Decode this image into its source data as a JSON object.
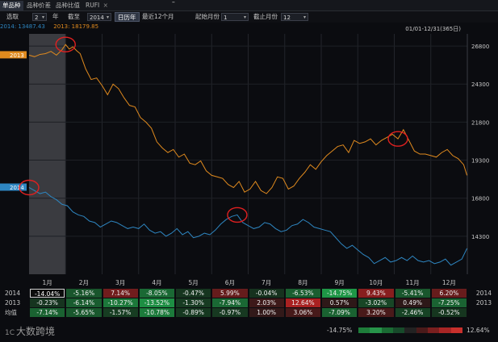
{
  "tabs": [
    {
      "label": "单品种",
      "active": true
    },
    {
      "label": "品种价差",
      "active": false
    },
    {
      "label": "品种比值",
      "active": false
    },
    {
      "label": "RUFI",
      "active": false,
      "closable": true
    }
  ],
  "toolbar": {
    "select_label": "选取",
    "years_value": "2",
    "years_unit": "年",
    "to_label": "截至",
    "year_value": "2014",
    "calendar_button": "日历年",
    "recent_button": "最近12个月",
    "start_month_label": "起始月份",
    "start_month_value": "1",
    "end_month_label": "截止月份",
    "end_month_value": "12",
    "minimize_icon": "minimize-icon"
  },
  "legend": {
    "s2014": "2014: 13487.43",
    "s2013": "2013: 18179.85",
    "color_2014": "#2e86c1",
    "color_2013": "#e08a1e"
  },
  "range_info": "01/01-12/31(365日)",
  "chart_data": {
    "type": "line",
    "ylim": [
      11800,
      27600
    ],
    "yticks": [
      "26800",
      "24300",
      "21800",
      "19300",
      "16800",
      "14300"
    ],
    "ytick_values": [
      26800,
      24300,
      21800,
      19300,
      16800,
      14300
    ],
    "x_months": [
      "1月",
      "2月",
      "3月",
      "4月",
      "5月",
      "6月",
      "7月",
      "8月",
      "9月",
      "10月",
      "11月",
      "12月"
    ],
    "series_tags": [
      "2013",
      "2014"
    ],
    "series": [
      {
        "name": "2013",
        "color": "#e08a1e",
        "x": [
          0,
          0.15,
          0.3,
          0.45,
          0.6,
          0.75,
          0.9,
          1.0,
          1.1,
          1.2,
          1.3,
          1.4,
          1.55,
          1.7,
          1.85,
          2.0,
          2.15,
          2.3,
          2.45,
          2.6,
          2.75,
          2.9,
          3.05,
          3.2,
          3.35,
          3.5,
          3.65,
          3.8,
          3.95,
          4.1,
          4.25,
          4.4,
          4.55,
          4.7,
          4.85,
          5.0,
          5.15,
          5.3,
          5.45,
          5.6,
          5.75,
          5.9,
          6.05,
          6.2,
          6.35,
          6.5,
          6.65,
          6.8,
          6.95,
          7.1,
          7.25,
          7.4,
          7.55,
          7.7,
          7.85,
          8.0,
          8.15,
          8.3,
          8.45,
          8.6,
          8.75,
          8.9,
          9.05,
          9.2,
          9.35,
          9.5,
          9.65,
          9.8,
          9.95,
          10.1,
          10.25,
          10.4,
          10.55,
          10.7,
          10.85,
          11.0,
          11.15,
          11.3,
          11.45,
          11.6,
          11.75,
          11.9,
          11.99
        ],
        "values": [
          26200,
          26100,
          26250,
          26300,
          26450,
          26200,
          26550,
          26900,
          26600,
          26750,
          26500,
          26300,
          25300,
          24600,
          24700,
          24200,
          23600,
          24300,
          24000,
          23400,
          22900,
          22800,
          22100,
          21800,
          21400,
          20500,
          20100,
          19800,
          20000,
          19500,
          19700,
          19100,
          19000,
          19250,
          18600,
          18300,
          18200,
          18100,
          17700,
          17500,
          17900,
          17200,
          17400,
          17900,
          17300,
          17100,
          17500,
          18200,
          18100,
          17400,
          17600,
          18100,
          18500,
          19000,
          18700,
          19200,
          19600,
          19900,
          20200,
          20300,
          19800,
          20600,
          20400,
          20500,
          20700,
          20300,
          20600,
          20800,
          21000,
          20700,
          21300,
          20600,
          19900,
          19700,
          19700,
          19600,
          19500,
          19800,
          20000,
          19600,
          19400,
          19000,
          18300
        ]
      },
      {
        "name": "2014",
        "color": "#2e86c1",
        "x": [
          0,
          0.15,
          0.3,
          0.45,
          0.6,
          0.75,
          0.9,
          1.05,
          1.2,
          1.35,
          1.5,
          1.65,
          1.8,
          1.95,
          2.1,
          2.25,
          2.4,
          2.55,
          2.7,
          2.85,
          3.0,
          3.15,
          3.3,
          3.45,
          3.6,
          3.75,
          3.9,
          4.05,
          4.2,
          4.35,
          4.5,
          4.65,
          4.8,
          4.95,
          5.1,
          5.25,
          5.4,
          5.55,
          5.7,
          5.85,
          6.0,
          6.15,
          6.3,
          6.45,
          6.6,
          6.75,
          6.9,
          7.05,
          7.2,
          7.35,
          7.5,
          7.65,
          7.8,
          7.95,
          8.1,
          8.25,
          8.4,
          8.55,
          8.7,
          8.85,
          9.0,
          9.15,
          9.3,
          9.45,
          9.6,
          9.75,
          9.9,
          10.05,
          10.2,
          10.35,
          10.5,
          10.65,
          10.8,
          10.95,
          11.1,
          11.25,
          11.4,
          11.55,
          11.7,
          11.85,
          11.99
        ],
        "values": [
          17500,
          17300,
          17100,
          17200,
          16900,
          16700,
          16400,
          16300,
          15900,
          15700,
          15600,
          15300,
          15200,
          14900,
          15100,
          15300,
          15200,
          15000,
          14800,
          14900,
          14800,
          15100,
          14700,
          14500,
          14600,
          14300,
          14500,
          14800,
          14400,
          14600,
          14200,
          14300,
          14500,
          14400,
          14700,
          15100,
          15400,
          15600,
          15700,
          15200,
          15000,
          14800,
          14900,
          15200,
          15100,
          14800,
          14600,
          14700,
          15000,
          15100,
          15400,
          15200,
          14900,
          14800,
          14700,
          14600,
          14200,
          13800,
          13500,
          13700,
          13400,
          13100,
          12900,
          12500,
          12700,
          12900,
          12600,
          12700,
          12900,
          12700,
          13000,
          12700,
          12600,
          12700,
          12500,
          12600,
          12800,
          12400,
          12600,
          12800,
          13500
        ]
      }
    ]
  },
  "grid": {
    "rows": [
      {
        "label": "2014",
        "values": [
          "-14.04%",
          "-5.16%",
          "7.14%",
          "-8.05%",
          "-0.47%",
          "5.99%",
          "-0.04%",
          "-6.53%",
          "-14.75%",
          "9.43%",
          "-5.41%",
          "6.20%"
        ],
        "nums": [
          -14.04,
          -5.16,
          7.14,
          -8.05,
          -0.47,
          5.99,
          -0.04,
          -6.53,
          -14.75,
          9.43,
          -5.41,
          6.2
        ]
      },
      {
        "label": "2013",
        "values": [
          "-0.23%",
          "-6.14%",
          "-10.27%",
          "-13.52%",
          "-1.30%",
          "-7.94%",
          "2.03%",
          "12.64%",
          "0.57%",
          "-3.02%",
          "0.49%",
          "-7.25%"
        ],
        "nums": [
          -0.23,
          -6.14,
          -10.27,
          -13.52,
          -1.3,
          -7.94,
          2.03,
          12.64,
          0.57,
          -3.02,
          0.49,
          -7.25
        ]
      },
      {
        "label": "均值",
        "values": [
          "-7.14%",
          "-5.65%",
          "-1.57%",
          "-10.78%",
          "-0.89%",
          "-0.97%",
          "1.00%",
          "3.06%",
          "-7.09%",
          "3.20%",
          "-2.46%",
          "-0.52%"
        ],
        "nums": [
          -7.14,
          -5.65,
          -1.57,
          -10.78,
          -0.89,
          -0.97,
          1.0,
          3.06,
          -7.09,
          3.2,
          -2.46,
          -0.52
        ]
      }
    ]
  },
  "footer": {
    "logo_text": "大数跨境",
    "logo_mark": "1C",
    "scale_min": "-14.75%",
    "scale_max": "12.64%",
    "scale_colors": [
      "#1e7d3a",
      "#27944a",
      "#1a6b33",
      "#174a2a",
      "#222222",
      "#4a1a1a",
      "#7a1f1f",
      "#a82525",
      "#c8302c"
    ]
  }
}
